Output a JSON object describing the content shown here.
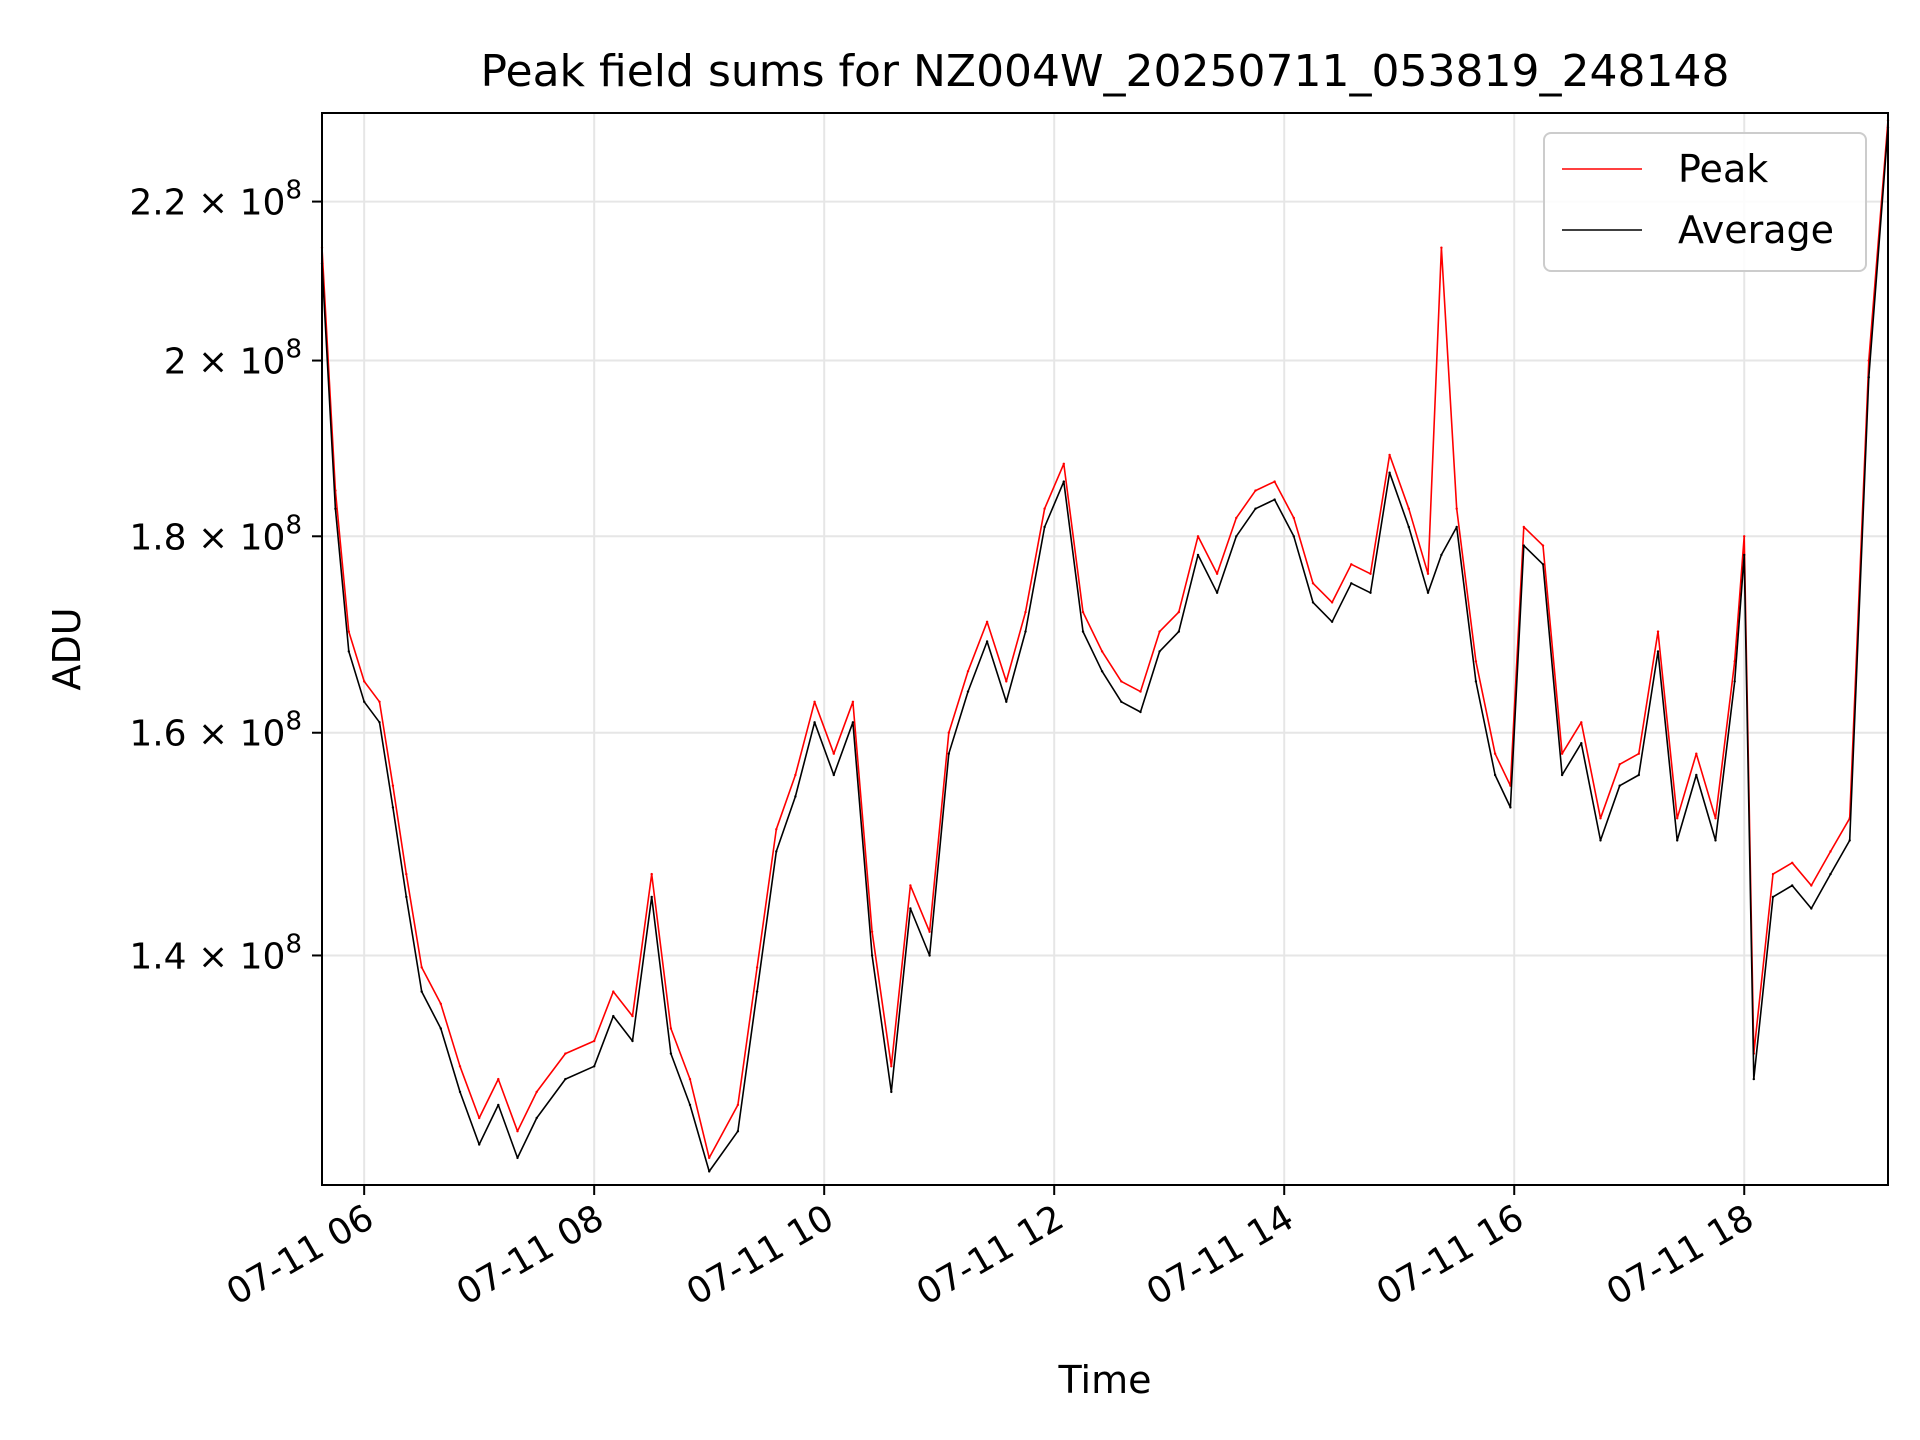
{
  "chart_data": {
    "type": "line",
    "title": "Peak field sums for NZ004W_20250711_053819_248148",
    "xlabel": "Time",
    "ylabel": "ADU",
    "y_scale": "log",
    "xlim": [
      "2025-07-11T05:38",
      "2025-07-11T19:15"
    ],
    "ylim": [
      122000000,
      232000000
    ],
    "x_ticks": [
      {
        "t": "2025-07-11T06:00",
        "label": "07-11 06"
      },
      {
        "t": "2025-07-11T08:00",
        "label": "07-11 08"
      },
      {
        "t": "2025-07-11T10:00",
        "label": "07-11 10"
      },
      {
        "t": "2025-07-11T12:00",
        "label": "07-11 12"
      },
      {
        "t": "2025-07-11T14:00",
        "label": "07-11 14"
      },
      {
        "t": "2025-07-11T16:00",
        "label": "07-11 16"
      },
      {
        "t": "2025-07-11T18:00",
        "label": "07-11 18"
      }
    ],
    "y_ticks": [
      {
        "value": 140000000,
        "mantissa": "1.4",
        "exponent": "8"
      },
      {
        "value": 160000000,
        "mantissa": "1.6",
        "exponent": "8"
      },
      {
        "value": 180000000,
        "mantissa": "1.8",
        "exponent": "8"
      },
      {
        "value": 200000000,
        "mantissa": "2",
        "exponent": "8"
      },
      {
        "value": 220000000,
        "mantissa": "2.2",
        "exponent": "8"
      }
    ],
    "grid": true,
    "legend": {
      "position": "top-right"
    },
    "series": [
      {
        "name": "Peak",
        "color": "#ff0000",
        "points": [
          [
            "2025-07-11T05:38",
            214000000
          ],
          [
            "2025-07-11T05:45",
            185000000
          ],
          [
            "2025-07-11T05:52",
            170000000
          ],
          [
            "2025-07-11T06:00",
            165000000
          ],
          [
            "2025-07-11T06:08",
            163000000
          ],
          [
            "2025-07-11T06:15",
            155000000
          ],
          [
            "2025-07-11T06:22",
            147000000
          ],
          [
            "2025-07-11T06:30",
            139000000
          ],
          [
            "2025-07-11T06:40",
            136000000
          ],
          [
            "2025-07-11T06:50",
            131000000
          ],
          [
            "2025-07-11T07:00",
            127000000
          ],
          [
            "2025-07-11T07:10",
            130000000
          ],
          [
            "2025-07-11T07:20",
            126000000
          ],
          [
            "2025-07-11T07:30",
            129000000
          ],
          [
            "2025-07-11T07:45",
            132000000
          ],
          [
            "2025-07-11T08:00",
            133000000
          ],
          [
            "2025-07-11T08:10",
            137000000
          ],
          [
            "2025-07-11T08:20",
            135000000
          ],
          [
            "2025-07-11T08:30",
            147000000
          ],
          [
            "2025-07-11T08:40",
            134000000
          ],
          [
            "2025-07-11T08:50",
            130000000
          ],
          [
            "2025-07-11T09:00",
            124000000
          ],
          [
            "2025-07-11T09:15",
            128000000
          ],
          [
            "2025-07-11T09:25",
            139000000
          ],
          [
            "2025-07-11T09:35",
            151000000
          ],
          [
            "2025-07-11T09:45",
            156000000
          ],
          [
            "2025-07-11T09:55",
            163000000
          ],
          [
            "2025-07-11T10:05",
            158000000
          ],
          [
            "2025-07-11T10:15",
            163000000
          ],
          [
            "2025-07-11T10:25",
            142000000
          ],
          [
            "2025-07-11T10:35",
            131000000
          ],
          [
            "2025-07-11T10:45",
            146000000
          ],
          [
            "2025-07-11T10:55",
            142000000
          ],
          [
            "2025-07-11T11:05",
            160000000
          ],
          [
            "2025-07-11T11:15",
            166000000
          ],
          [
            "2025-07-11T11:25",
            171000000
          ],
          [
            "2025-07-11T11:35",
            165000000
          ],
          [
            "2025-07-11T11:45",
            172000000
          ],
          [
            "2025-07-11T11:55",
            183000000
          ],
          [
            "2025-07-11T12:05",
            188000000
          ],
          [
            "2025-07-11T12:15",
            172000000
          ],
          [
            "2025-07-11T12:25",
            168000000
          ],
          [
            "2025-07-11T12:35",
            165000000
          ],
          [
            "2025-07-11T12:45",
            164000000
          ],
          [
            "2025-07-11T12:55",
            170000000
          ],
          [
            "2025-07-11T13:05",
            172000000
          ],
          [
            "2025-07-11T13:15",
            180000000
          ],
          [
            "2025-07-11T13:25",
            176000000
          ],
          [
            "2025-07-11T13:35",
            182000000
          ],
          [
            "2025-07-11T13:45",
            185000000
          ],
          [
            "2025-07-11T13:55",
            186000000
          ],
          [
            "2025-07-11T14:05",
            182000000
          ],
          [
            "2025-07-11T14:15",
            175000000
          ],
          [
            "2025-07-11T14:25",
            173000000
          ],
          [
            "2025-07-11T14:35",
            177000000
          ],
          [
            "2025-07-11T14:45",
            176000000
          ],
          [
            "2025-07-11T14:55",
            189000000
          ],
          [
            "2025-07-11T15:05",
            183000000
          ],
          [
            "2025-07-11T15:15",
            176000000
          ],
          [
            "2025-07-11T15:22",
            214000000
          ],
          [
            "2025-07-11T15:30",
            183000000
          ],
          [
            "2025-07-11T15:40",
            167000000
          ],
          [
            "2025-07-11T15:50",
            158000000
          ],
          [
            "2025-07-11T15:58",
            155000000
          ],
          [
            "2025-07-11T16:05",
            181000000
          ],
          [
            "2025-07-11T16:15",
            179000000
          ],
          [
            "2025-07-11T16:25",
            158000000
          ],
          [
            "2025-07-11T16:35",
            161000000
          ],
          [
            "2025-07-11T16:45",
            152000000
          ],
          [
            "2025-07-11T16:55",
            157000000
          ],
          [
            "2025-07-11T17:05",
            158000000
          ],
          [
            "2025-07-11T17:15",
            170000000
          ],
          [
            "2025-07-11T17:25",
            152000000
          ],
          [
            "2025-07-11T17:35",
            158000000
          ],
          [
            "2025-07-11T17:45",
            152000000
          ],
          [
            "2025-07-11T17:55",
            167000000
          ],
          [
            "2025-07-11T18:00",
            180000000
          ],
          [
            "2025-07-11T18:05",
            132000000
          ],
          [
            "2025-07-11T18:15",
            147000000
          ],
          [
            "2025-07-11T18:25",
            148000000
          ],
          [
            "2025-07-11T18:35",
            146000000
          ],
          [
            "2025-07-11T18:45",
            149000000
          ],
          [
            "2025-07-11T18:55",
            152000000
          ],
          [
            "2025-07-11T19:05",
            200000000
          ],
          [
            "2025-07-11T19:15",
            231000000
          ]
        ]
      },
      {
        "name": "Average",
        "color": "#000000",
        "points": [
          [
            "2025-07-11T05:38",
            212000000
          ],
          [
            "2025-07-11T05:45",
            183000000
          ],
          [
            "2025-07-11T05:52",
            168000000
          ],
          [
            "2025-07-11T06:00",
            163000000
          ],
          [
            "2025-07-11T06:08",
            161000000
          ],
          [
            "2025-07-11T06:15",
            153000000
          ],
          [
            "2025-07-11T06:22",
            145000000
          ],
          [
            "2025-07-11T06:30",
            137000000
          ],
          [
            "2025-07-11T06:40",
            134000000
          ],
          [
            "2025-07-11T06:50",
            129000000
          ],
          [
            "2025-07-11T07:00",
            125000000
          ],
          [
            "2025-07-11T07:10",
            128000000
          ],
          [
            "2025-07-11T07:20",
            124000000
          ],
          [
            "2025-07-11T07:30",
            127000000
          ],
          [
            "2025-07-11T07:45",
            130000000
          ],
          [
            "2025-07-11T08:00",
            131000000
          ],
          [
            "2025-07-11T08:10",
            135000000
          ],
          [
            "2025-07-11T08:20",
            133000000
          ],
          [
            "2025-07-11T08:30",
            145000000
          ],
          [
            "2025-07-11T08:40",
            132000000
          ],
          [
            "2025-07-11T08:50",
            128000000
          ],
          [
            "2025-07-11T09:00",
            123000000
          ],
          [
            "2025-07-11T09:15",
            126000000
          ],
          [
            "2025-07-11T09:25",
            137000000
          ],
          [
            "2025-07-11T09:35",
            149000000
          ],
          [
            "2025-07-11T09:45",
            154000000
          ],
          [
            "2025-07-11T09:55",
            161000000
          ],
          [
            "2025-07-11T10:05",
            156000000
          ],
          [
            "2025-07-11T10:15",
            161000000
          ],
          [
            "2025-07-11T10:25",
            140000000
          ],
          [
            "2025-07-11T10:35",
            129000000
          ],
          [
            "2025-07-11T10:45",
            144000000
          ],
          [
            "2025-07-11T10:55",
            140000000
          ],
          [
            "2025-07-11T11:05",
            158000000
          ],
          [
            "2025-07-11T11:15",
            164000000
          ],
          [
            "2025-07-11T11:25",
            169000000
          ],
          [
            "2025-07-11T11:35",
            163000000
          ],
          [
            "2025-07-11T11:45",
            170000000
          ],
          [
            "2025-07-11T11:55",
            181000000
          ],
          [
            "2025-07-11T12:05",
            186000000
          ],
          [
            "2025-07-11T12:15",
            170000000
          ],
          [
            "2025-07-11T12:25",
            166000000
          ],
          [
            "2025-07-11T12:35",
            163000000
          ],
          [
            "2025-07-11T12:45",
            162000000
          ],
          [
            "2025-07-11T12:55",
            168000000
          ],
          [
            "2025-07-11T13:05",
            170000000
          ],
          [
            "2025-07-11T13:15",
            178000000
          ],
          [
            "2025-07-11T13:25",
            174000000
          ],
          [
            "2025-07-11T13:35",
            180000000
          ],
          [
            "2025-07-11T13:45",
            183000000
          ],
          [
            "2025-07-11T13:55",
            184000000
          ],
          [
            "2025-07-11T14:05",
            180000000
          ],
          [
            "2025-07-11T14:15",
            173000000
          ],
          [
            "2025-07-11T14:25",
            171000000
          ],
          [
            "2025-07-11T14:35",
            175000000
          ],
          [
            "2025-07-11T14:45",
            174000000
          ],
          [
            "2025-07-11T14:55",
            187000000
          ],
          [
            "2025-07-11T15:05",
            181000000
          ],
          [
            "2025-07-11T15:15",
            174000000
          ],
          [
            "2025-07-11T15:22",
            178000000
          ],
          [
            "2025-07-11T15:30",
            181000000
          ],
          [
            "2025-07-11T15:40",
            165000000
          ],
          [
            "2025-07-11T15:50",
            156000000
          ],
          [
            "2025-07-11T15:58",
            153000000
          ],
          [
            "2025-07-11T16:05",
            179000000
          ],
          [
            "2025-07-11T16:15",
            177000000
          ],
          [
            "2025-07-11T16:25",
            156000000
          ],
          [
            "2025-07-11T16:35",
            159000000
          ],
          [
            "2025-07-11T16:45",
            150000000
          ],
          [
            "2025-07-11T16:55",
            155000000
          ],
          [
            "2025-07-11T17:05",
            156000000
          ],
          [
            "2025-07-11T17:15",
            168000000
          ],
          [
            "2025-07-11T17:25",
            150000000
          ],
          [
            "2025-07-11T17:35",
            156000000
          ],
          [
            "2025-07-11T17:45",
            150000000
          ],
          [
            "2025-07-11T17:55",
            165000000
          ],
          [
            "2025-07-11T18:00",
            178000000
          ],
          [
            "2025-07-11T18:05",
            130000000
          ],
          [
            "2025-07-11T18:15",
            145000000
          ],
          [
            "2025-07-11T18:25",
            146000000
          ],
          [
            "2025-07-11T18:35",
            144000000
          ],
          [
            "2025-07-11T18:45",
            147000000
          ],
          [
            "2025-07-11T18:55",
            150000000
          ],
          [
            "2025-07-11T19:05",
            198000000
          ],
          [
            "2025-07-11T19:15",
            230000000
          ]
        ]
      }
    ]
  }
}
